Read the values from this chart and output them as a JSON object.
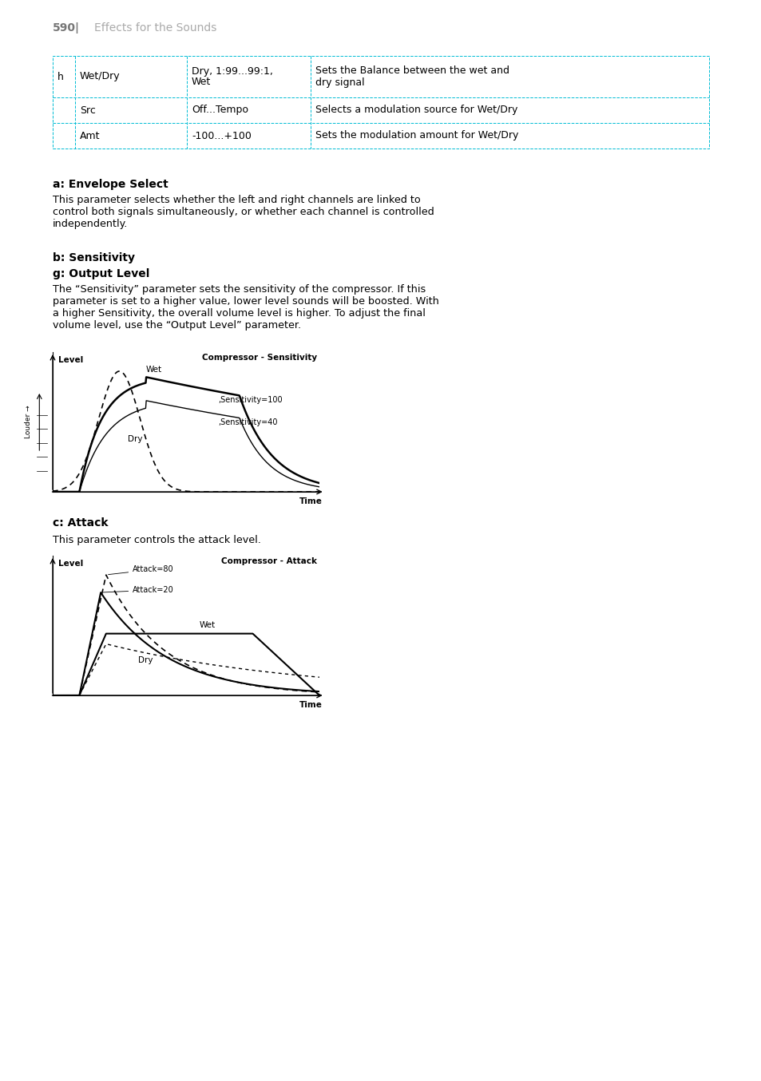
{
  "page_number": "590|",
  "page_title": "Effects for the Sounds",
  "table_rows": [
    {
      "col1": "h",
      "col2": "Wet/Dry",
      "col3": "Dry, 1:99...99:1,\nWet",
      "col4": "Sets the Balance between the wet and\ndry signal"
    },
    {
      "col1": "",
      "col2": "Src",
      "col3": "Off...Tempo",
      "col4": "Selects a modulation source for Wet/Dry"
    },
    {
      "col1": "",
      "col2": "Amt",
      "col3": "-100...+100",
      "col4": "Sets the modulation amount for Wet/Dry"
    }
  ],
  "section_a_title": "a: Envelope Select",
  "section_a_text": "This parameter selects whether the left and right channels are linked to\ncontrol both signals simultaneously, or whether each channel is controlled\nindependently.",
  "section_b_title": "b: Sensitivity",
  "section_g_title": "g: Output Level",
  "section_bg_text": "The “Sensitivity” parameter sets the sensitivity of the compressor. If this\nparameter is set to a higher value, lower level sounds will be boosted. With\na higher Sensitivity, the overall volume level is higher. To adjust the final\nvolume level, use the “Output Level” parameter.",
  "chart1_title": "Compressor - Sensitivity",
  "chart1_ylabel": "Level",
  "chart1_xlabel": "Time",
  "chart1_yaxis_label": "Louder →",
  "section_c_title": "c: Attack",
  "section_c_text": "This parameter controls the attack level.",
  "chart2_title": "Compressor - Attack",
  "chart2_ylabel": "Level",
  "chart2_xlabel": "Time",
  "table_border_color": "#00bcd4",
  "bg_color": "#ffffff",
  "text_color": "#000000"
}
